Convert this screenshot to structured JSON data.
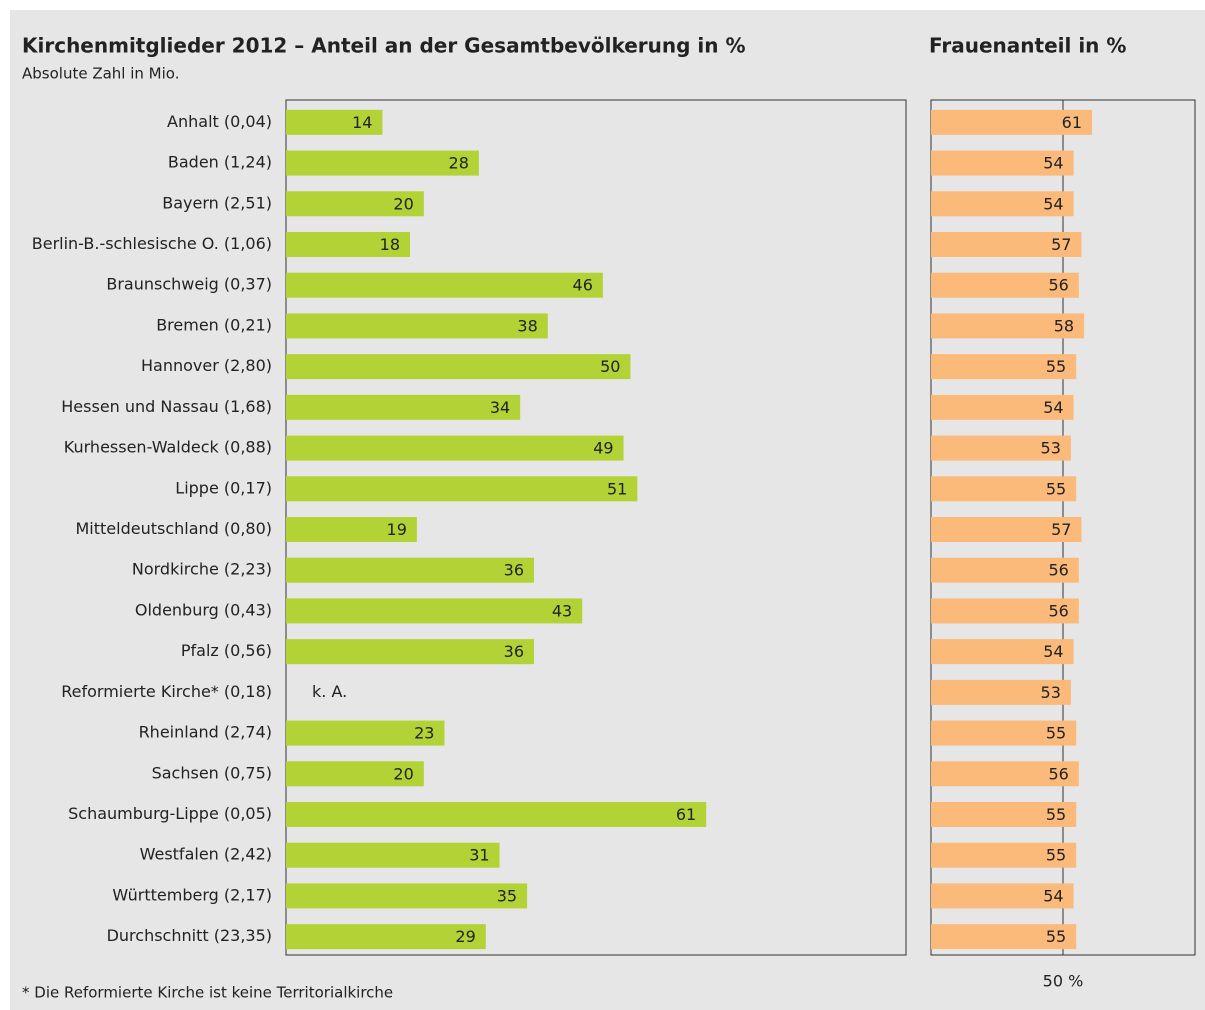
{
  "chart_data": [
    {
      "type": "bar",
      "title": "Kirchenmitglieder 2012 – Anteil an der Gesamtbevölkerung in %",
      "subtitle": "Absolute Zahl in Mio.",
      "footnote": "* Die Reformierte Kirche ist keine Territorialkirche",
      "categories": [
        "Anhalt (0,04)",
        "Baden (1,24)",
        "Bayern (2,51)",
        "Berlin-B.-schlesische O. (1,06)",
        "Braunschweig (0,37)",
        "Bremen (0,21)",
        "Hannover (2,80)",
        "Hessen und Nassau (1,68)",
        "Kurhessen-Waldeck (0,88)",
        "Lippe (0,17)",
        "Mitteldeutschland (0,80)",
        "Nordkirche (2,23)",
        "Oldenburg (0,43)",
        "Pfalz (0,56)",
        "Reformierte Kirche* (0,18)",
        "Rheinland (2,74)",
        "Sachsen (0,75)",
        "Schaumburg-Lippe (0,05)",
        "Westfalen (2,42)",
        "Württemberg (2,17)",
        "Durchschnitt (23,35)"
      ],
      "values": [
        14,
        28,
        20,
        18,
        46,
        38,
        50,
        34,
        49,
        51,
        19,
        36,
        43,
        36,
        null,
        23,
        20,
        61,
        31,
        35,
        29
      ],
      "value_labels": [
        "14",
        "28",
        "20",
        "18",
        "46",
        "38",
        "50",
        "34",
        "49",
        "51",
        "19",
        "36",
        "43",
        "36",
        "k. A.",
        "23",
        "20",
        "61",
        "31",
        "35",
        "29"
      ],
      "color": "#b2d235",
      "xlim": [
        0,
        90
      ]
    },
    {
      "type": "bar",
      "title": "Frauenanteil in %",
      "values": [
        61,
        54,
        54,
        57,
        56,
        58,
        55,
        54,
        53,
        55,
        57,
        56,
        56,
        54,
        53,
        55,
        56,
        55,
        55,
        54,
        55
      ],
      "color": "#fbb97a",
      "xlim": [
        0,
        100
      ],
      "xticks": [
        {
          "value": 50,
          "label": "50 %"
        }
      ]
    }
  ]
}
